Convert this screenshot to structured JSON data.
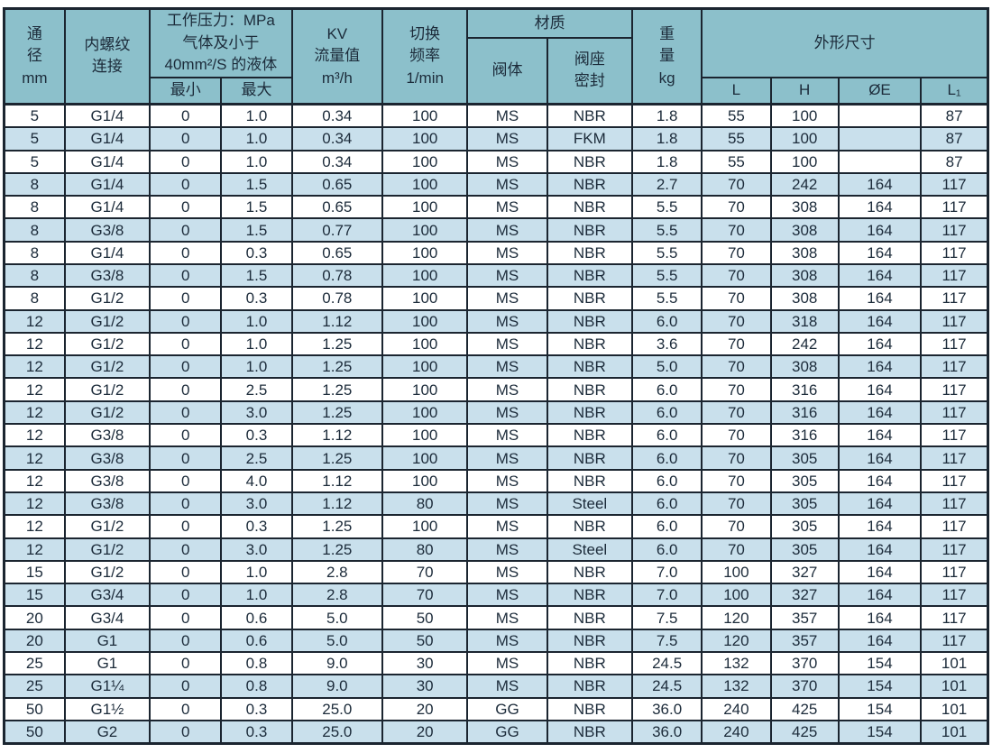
{
  "table": {
    "header": {
      "dn": "通\n径\nmm",
      "thread": "内螺纹\n连接",
      "pressure_title": "工作压力：MPa\n气体及小于\n40mm²/S 的液体",
      "pressure_min": "最小",
      "pressure_max": "最大",
      "kv": "KV\n流量值\nm³/h",
      "freq": "切换\n频率\n1/min",
      "material": "材质",
      "valve_body": "阀体",
      "seat_seal": "阀座\n密封",
      "weight": "重\n量\nkg",
      "dimensions": "外形尺寸",
      "dim_l": "L",
      "dim_h": "H",
      "dim_e": "ØE",
      "dim_l1": "L₁"
    },
    "rows": [
      [
        "5",
        "G1/4",
        "0",
        "1.0",
        "0.34",
        "100",
        "MS",
        "NBR",
        "1.8",
        "55",
        "100",
        "",
        "87"
      ],
      [
        "5",
        "G1/4",
        "0",
        "1.0",
        "0.34",
        "100",
        "MS",
        "FKM",
        "1.8",
        "55",
        "100",
        "",
        "87"
      ],
      [
        "5",
        "G1/4",
        "0",
        "1.0",
        "0.34",
        "100",
        "MS",
        "NBR",
        "1.8",
        "55",
        "100",
        "",
        "87"
      ],
      [
        "8",
        "G1/4",
        "0",
        "1.5",
        "0.65",
        "100",
        "MS",
        "NBR",
        "2.7",
        "70",
        "242",
        "164",
        "117"
      ],
      [
        "8",
        "G1/4",
        "0",
        "1.5",
        "0.65",
        "100",
        "MS",
        "NBR",
        "5.5",
        "70",
        "308",
        "164",
        "117"
      ],
      [
        "8",
        "G3/8",
        "0",
        "1.5",
        "0.77",
        "100",
        "MS",
        "NBR",
        "5.5",
        "70",
        "308",
        "164",
        "117"
      ],
      [
        "8",
        "G1/4",
        "0",
        "0.3",
        "0.65",
        "100",
        "MS",
        "NBR",
        "5.5",
        "70",
        "308",
        "164",
        "117"
      ],
      [
        "8",
        "G3/8",
        "0",
        "1.5",
        "0.78",
        "100",
        "MS",
        "NBR",
        "5.5",
        "70",
        "308",
        "164",
        "117"
      ],
      [
        "8",
        "G1/2",
        "0",
        "0.3",
        "0.78",
        "100",
        "MS",
        "NBR",
        "5.5",
        "70",
        "308",
        "164",
        "117"
      ],
      [
        "12",
        "G1/2",
        "0",
        "1.0",
        "1.12",
        "100",
        "MS",
        "NBR",
        "6.0",
        "70",
        "318",
        "164",
        "117"
      ],
      [
        "12",
        "G1/2",
        "0",
        "1.0",
        "1.25",
        "100",
        "MS",
        "NBR",
        "3.6",
        "70",
        "242",
        "164",
        "117"
      ],
      [
        "12",
        "G1/2",
        "0",
        "1.0",
        "1.25",
        "100",
        "MS",
        "NBR",
        "5.0",
        "70",
        "308",
        "164",
        "117"
      ],
      [
        "12",
        "G1/2",
        "0",
        "2.5",
        "1.25",
        "100",
        "MS",
        "NBR",
        "6.0",
        "70",
        "316",
        "164",
        "117"
      ],
      [
        "12",
        "G1/2",
        "0",
        "3.0",
        "1.25",
        "100",
        "MS",
        "NBR",
        "6.0",
        "70",
        "316",
        "164",
        "117"
      ],
      [
        "12",
        "G3/8",
        "0",
        "0.3",
        "1.12",
        "100",
        "MS",
        "NBR",
        "6.0",
        "70",
        "316",
        "164",
        "117"
      ],
      [
        "12",
        "G3/8",
        "0",
        "2.5",
        "1.25",
        "100",
        "MS",
        "NBR",
        "6.0",
        "70",
        "305",
        "164",
        "117"
      ],
      [
        "12",
        "G3/8",
        "0",
        "4.0",
        "1.12",
        "100",
        "MS",
        "NBR",
        "6.0",
        "70",
        "305",
        "164",
        "117"
      ],
      [
        "12",
        "G3/8",
        "0",
        "3.0",
        "1.12",
        "80",
        "MS",
        "Steel",
        "6.0",
        "70",
        "305",
        "164",
        "117"
      ],
      [
        "12",
        "G1/2",
        "0",
        "0.3",
        "1.25",
        "100",
        "MS",
        "NBR",
        "6.0",
        "70",
        "305",
        "164",
        "117"
      ],
      [
        "12",
        "G1/2",
        "0",
        "3.0",
        "1.25",
        "80",
        "MS",
        "Steel",
        "6.0",
        "70",
        "305",
        "164",
        "117"
      ],
      [
        "15",
        "G1/2",
        "0",
        "1.0",
        "2.8",
        "70",
        "MS",
        "NBR",
        "7.0",
        "100",
        "327",
        "164",
        "117"
      ],
      [
        "15",
        "G3/4",
        "0",
        "1.0",
        "2.8",
        "70",
        "MS",
        "NBR",
        "7.0",
        "100",
        "327",
        "164",
        "117"
      ],
      [
        "20",
        "G3/4",
        "0",
        "0.6",
        "5.0",
        "50",
        "MS",
        "NBR",
        "7.5",
        "120",
        "357",
        "164",
        "117"
      ],
      [
        "20",
        "G1",
        "0",
        "0.6",
        "5.0",
        "50",
        "MS",
        "NBR",
        "7.5",
        "120",
        "357",
        "164",
        "117"
      ],
      [
        "25",
        "G1",
        "0",
        "0.8",
        "9.0",
        "30",
        "MS",
        "NBR",
        "24.5",
        "132",
        "370",
        "154",
        "101"
      ],
      [
        "25",
        "G1¼",
        "0",
        "0.8",
        "9.0",
        "30",
        "MS",
        "NBR",
        "24.5",
        "132",
        "370",
        "154",
        "101"
      ],
      [
        "50",
        "G1½",
        "0",
        "0.3",
        "25.0",
        "20",
        "GG",
        "NBR",
        "36.0",
        "240",
        "425",
        "154",
        "101"
      ],
      [
        "50",
        "G2",
        "0",
        "0.3",
        "25.0",
        "20",
        "GG",
        "NBR",
        "36.0",
        "240",
        "425",
        "154",
        "101"
      ]
    ]
  },
  "colors": {
    "header_bg": "#8cc0cb",
    "row_alt_bg": "#c9e0ec",
    "row_bg": "#ffffff",
    "border": "#1b2530",
    "text": "#1c2b3a"
  }
}
